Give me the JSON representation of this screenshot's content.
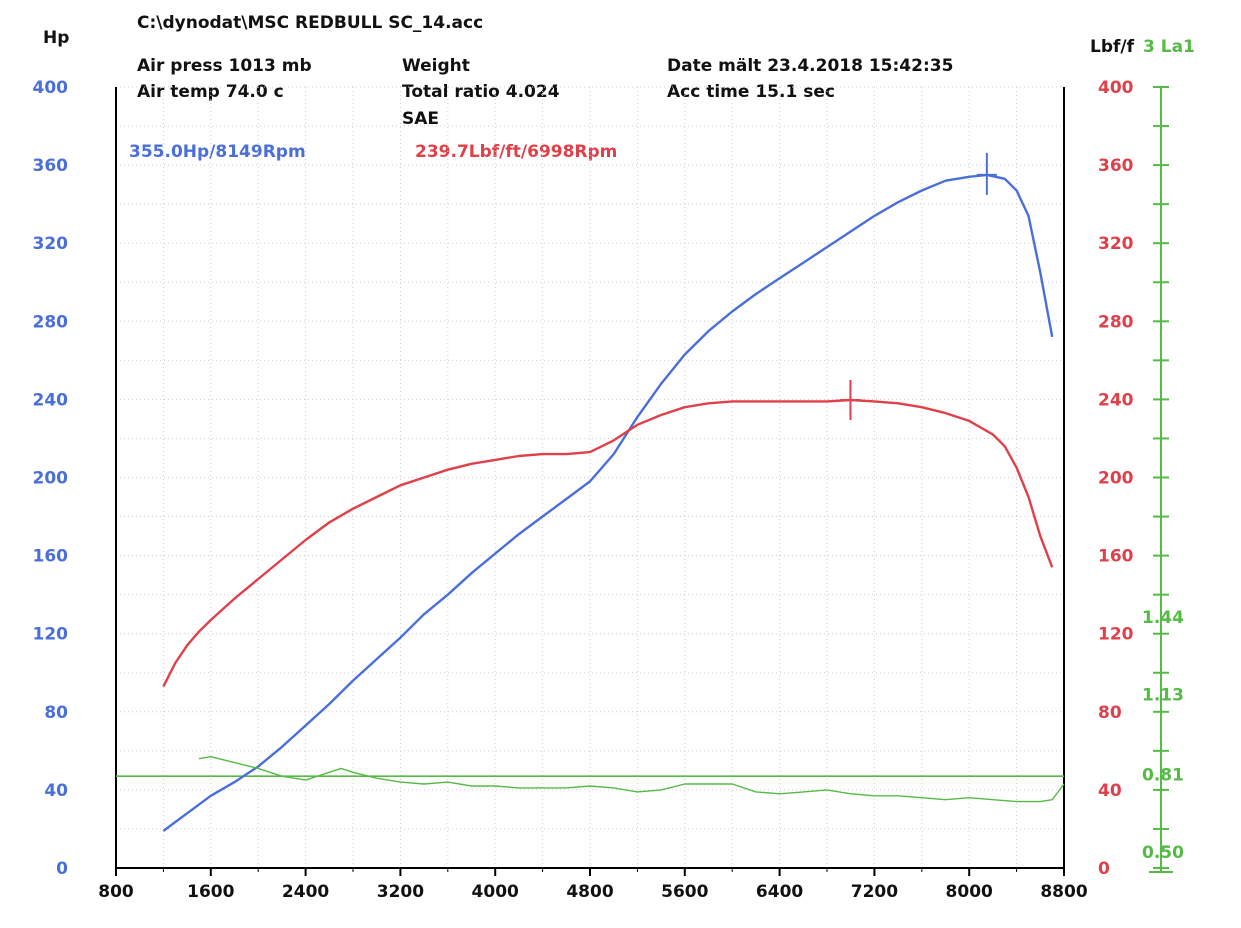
{
  "header": {
    "file": "C:\\dynodat\\MSC REDBULL SC_14.acc",
    "air_press": "Air press  1013 mb",
    "air_temp": "Air temp  74.0 c",
    "weight": "Weight",
    "total_ratio": "Total ratio 4.024",
    "sae": "SAE",
    "date": "Date mält 23.4.2018 15:42:35",
    "acc_time": "Acc time  15.1 sec"
  },
  "colors": {
    "power": "#4a6fd8",
    "torque": "#e0404a",
    "lambda": "#55bb44",
    "axis": "#000000"
  },
  "chart_data": {
    "type": "line",
    "x_axis": {
      "range": [
        800,
        8800
      ],
      "ticks": [
        800,
        1600,
        2400,
        3200,
        4000,
        4800,
        5600,
        6400,
        7200,
        8000,
        8800
      ],
      "tick_labels": [
        "800",
        "1600",
        "2400",
        "3200",
        "4000",
        "4800",
        "5600",
        "6400",
        "7200",
        "8000",
        "8800"
      ]
    },
    "y_left": {
      "label": "Hp",
      "range": [
        0,
        400
      ],
      "ticks": [
        0,
        40,
        80,
        120,
        160,
        200,
        240,
        280,
        320,
        360,
        400
      ],
      "tick_labels": [
        "0",
        "40",
        "80",
        "120",
        "160",
        "200",
        "240",
        "280",
        "320",
        "360",
        "400"
      ],
      "color": "#4a6fd8"
    },
    "y_right": {
      "label": "Lbf/f",
      "range": [
        0,
        400
      ],
      "ticks": [
        0,
        40,
        80,
        120,
        160,
        200,
        240,
        280,
        320,
        360,
        400
      ],
      "tick_labels": [
        "0",
        "40",
        "80",
        "120",
        "160",
        "200",
        "240",
        "280",
        "320",
        "360",
        "400"
      ],
      "color": "#e0404a"
    },
    "y_lambda": {
      "label": "3 La1",
      "range": [
        0.5,
        1.44
      ],
      "ticks": [
        0.5,
        0.81,
        1.13,
        1.44
      ],
      "tick_labels": [
        "0.50",
        "0.81",
        "1.13",
        "1.44"
      ],
      "color": "#55bb44"
    },
    "peak_labels": {
      "power": "355.0Hp/8149Rpm",
      "torque": "239.7Lbf/ft/6998Rpm"
    },
    "peaks": {
      "power": {
        "x": 8149,
        "y": 355.0
      },
      "torque": {
        "x": 6998,
        "y": 239.7
      }
    },
    "reference_line": {
      "axis": "y_left",
      "y": 47
    },
    "series": [
      {
        "key": "power",
        "axis": "y_left",
        "points": [
          [
            1200,
            19
          ],
          [
            1400,
            28
          ],
          [
            1600,
            37
          ],
          [
            1800,
            44
          ],
          [
            2000,
            52
          ],
          [
            2200,
            62
          ],
          [
            2400,
            73
          ],
          [
            2600,
            84
          ],
          [
            2800,
            96
          ],
          [
            3000,
            107
          ],
          [
            3200,
            118
          ],
          [
            3400,
            130
          ],
          [
            3600,
            140
          ],
          [
            3800,
            151
          ],
          [
            4000,
            161
          ],
          [
            4200,
            171
          ],
          [
            4400,
            180
          ],
          [
            4600,
            189
          ],
          [
            4800,
            198
          ],
          [
            5000,
            212
          ],
          [
            5200,
            231
          ],
          [
            5400,
            248
          ],
          [
            5600,
            263
          ],
          [
            5800,
            275
          ],
          [
            6000,
            285
          ],
          [
            6200,
            294
          ],
          [
            6400,
            302
          ],
          [
            6600,
            310
          ],
          [
            6800,
            318
          ],
          [
            7000,
            326
          ],
          [
            7200,
            334
          ],
          [
            7400,
            341
          ],
          [
            7600,
            347
          ],
          [
            7800,
            352
          ],
          [
            8000,
            354
          ],
          [
            8149,
            355
          ],
          [
            8300,
            353
          ],
          [
            8400,
            347
          ],
          [
            8500,
            334
          ],
          [
            8600,
            305
          ],
          [
            8700,
            272
          ]
        ]
      },
      {
        "key": "torque",
        "axis": "y_right",
        "points": [
          [
            1200,
            93
          ],
          [
            1300,
            105
          ],
          [
            1400,
            114
          ],
          [
            1500,
            121
          ],
          [
            1600,
            127
          ],
          [
            1800,
            138
          ],
          [
            2000,
            148
          ],
          [
            2200,
            158
          ],
          [
            2400,
            168
          ],
          [
            2600,
            177
          ],
          [
            2800,
            184
          ],
          [
            3000,
            190
          ],
          [
            3200,
            196
          ],
          [
            3400,
            200
          ],
          [
            3600,
            204
          ],
          [
            3800,
            207
          ],
          [
            4000,
            209
          ],
          [
            4200,
            211
          ],
          [
            4400,
            212
          ],
          [
            4600,
            212
          ],
          [
            4800,
            213
          ],
          [
            5000,
            219
          ],
          [
            5200,
            227
          ],
          [
            5400,
            232
          ],
          [
            5600,
            236
          ],
          [
            5800,
            238
          ],
          [
            6000,
            239
          ],
          [
            6200,
            239
          ],
          [
            6400,
            239
          ],
          [
            6600,
            239
          ],
          [
            6800,
            239
          ],
          [
            6998,
            239.7
          ],
          [
            7200,
            239
          ],
          [
            7400,
            238
          ],
          [
            7600,
            236
          ],
          [
            7800,
            233
          ],
          [
            8000,
            229
          ],
          [
            8200,
            222
          ],
          [
            8300,
            216
          ],
          [
            8400,
            205
          ],
          [
            8500,
            190
          ],
          [
            8600,
            170
          ],
          [
            8700,
            154
          ]
        ]
      },
      {
        "key": "lambda",
        "axis": "y_left",
        "points": [
          [
            1500,
            56
          ],
          [
            1600,
            57
          ],
          [
            1800,
            54
          ],
          [
            2000,
            51
          ],
          [
            2200,
            47
          ],
          [
            2400,
            45
          ],
          [
            2600,
            49
          ],
          [
            2700,
            51
          ],
          [
            2800,
            49
          ],
          [
            3000,
            46
          ],
          [
            3200,
            44
          ],
          [
            3400,
            43
          ],
          [
            3600,
            44
          ],
          [
            3800,
            42
          ],
          [
            4000,
            42
          ],
          [
            4200,
            41
          ],
          [
            4400,
            41
          ],
          [
            4600,
            41
          ],
          [
            4800,
            42
          ],
          [
            5000,
            41
          ],
          [
            5200,
            39
          ],
          [
            5400,
            40
          ],
          [
            5600,
            43
          ],
          [
            5800,
            43
          ],
          [
            6000,
            43
          ],
          [
            6200,
            39
          ],
          [
            6400,
            38
          ],
          [
            6600,
            39
          ],
          [
            6800,
            40
          ],
          [
            7000,
            38
          ],
          [
            7200,
            37
          ],
          [
            7400,
            37
          ],
          [
            7600,
            36
          ],
          [
            7800,
            35
          ],
          [
            8000,
            36
          ],
          [
            8200,
            35
          ],
          [
            8400,
            34
          ],
          [
            8600,
            34
          ],
          [
            8700,
            35
          ],
          [
            8800,
            43
          ]
        ]
      }
    ]
  }
}
